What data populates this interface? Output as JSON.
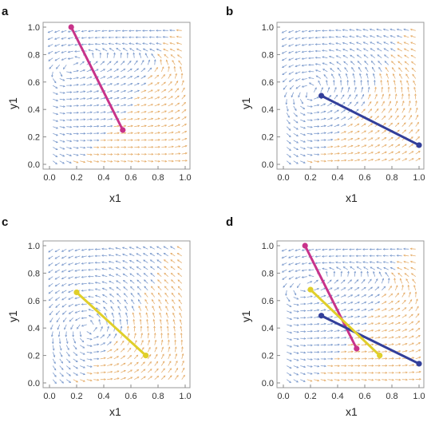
{
  "chart_data": [
    {
      "type": "line",
      "panel": "a",
      "xlabel": "x1",
      "ylabel": "y1",
      "xlim": [
        0,
        1
      ],
      "ylim": [
        0,
        1
      ],
      "xticks": [
        "0.0",
        "0.2",
        "0.4",
        "0.6",
        "0.8",
        "1.0"
      ],
      "yticks": [
        "0.0",
        "0.2",
        "0.4",
        "0.6",
        "0.8",
        "1.0"
      ],
      "background": "stream-plot",
      "series": [
        {
          "color": "#c8338a",
          "x": [
            0.16,
            0.54
          ],
          "y": [
            1.0,
            0.25
          ]
        }
      ]
    },
    {
      "type": "line",
      "panel": "b",
      "xlabel": "x1",
      "ylabel": "y1",
      "xlim": [
        0,
        1
      ],
      "ylim": [
        0,
        1
      ],
      "xticks": [
        "0.0",
        "0.2",
        "0.4",
        "0.6",
        "0.8",
        "1.0"
      ],
      "yticks": [
        "0.0",
        "0.2",
        "0.4",
        "0.6",
        "0.8",
        "1.0"
      ],
      "background": "stream-plot",
      "series": [
        {
          "color": "#333f9a",
          "x": [
            0.28,
            1.0
          ],
          "y": [
            0.5,
            0.14
          ]
        }
      ]
    },
    {
      "type": "line",
      "panel": "c",
      "xlabel": "x1",
      "ylabel": "y1",
      "xlim": [
        0,
        1
      ],
      "ylim": [
        0,
        1
      ],
      "xticks": [
        "0.0",
        "0.2",
        "0.4",
        "0.6",
        "0.8",
        "1.0"
      ],
      "yticks": [
        "0.0",
        "0.2",
        "0.4",
        "0.6",
        "0.8",
        "1.0"
      ],
      "background": "stream-plot",
      "series": [
        {
          "color": "#e0cf2a",
          "x": [
            0.2,
            0.71
          ],
          "y": [
            0.66,
            0.2
          ]
        }
      ]
    },
    {
      "type": "line",
      "panel": "d",
      "xlabel": "x1",
      "ylabel": "y1",
      "xlim": [
        0,
        1
      ],
      "ylim": [
        0,
        1
      ],
      "xticks": [
        "0.0",
        "0.2",
        "0.4",
        "0.6",
        "0.8",
        "1.0"
      ],
      "yticks": [
        "0.0",
        "0.2",
        "0.4",
        "0.6",
        "0.8",
        "1.0"
      ],
      "background": "stream-plot",
      "series": [
        {
          "color": "#c8338a",
          "x": [
            0.16,
            0.54
          ],
          "y": [
            1.0,
            0.25
          ]
        },
        {
          "color": "#333f9a",
          "x": [
            0.28,
            1.0
          ],
          "y": [
            0.49,
            0.14
          ]
        },
        {
          "color": "#e0cf2a",
          "x": [
            0.2,
            0.71
          ],
          "y": [
            0.68,
            0.2
          ]
        }
      ]
    }
  ],
  "colors": {
    "stream_blue": "#6d8fc7",
    "stream_orange": "#e3a55a",
    "frame": "#999999"
  }
}
